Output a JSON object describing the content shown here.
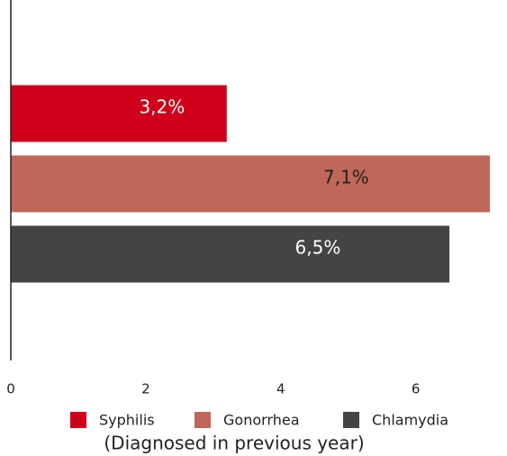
{
  "chart_data": {
    "type": "bar",
    "orientation": "horizontal",
    "categories": [
      null
    ],
    "series": [
      {
        "name": "Syphilis",
        "color": "#d0021b",
        "label_color": "#ffffff",
        "values": [
          3.2
        ],
        "value_labels": [
          "3,2%"
        ]
      },
      {
        "name": "Gonorrhea",
        "color": "#c0675b",
        "label_color": "#222222",
        "values": [
          7.1
        ],
        "value_labels": [
          "7,1%"
        ]
      },
      {
        "name": "Chlamydia",
        "color": "#444444",
        "label_color": "#ffffff",
        "values": [
          6.5
        ],
        "value_labels": [
          "6,5%"
        ]
      }
    ],
    "xlabel": "(Diagnosed in previous year)",
    "xlim": [
      0,
      7.3
    ],
    "xticks": [
      0,
      2,
      4,
      6
    ],
    "grid": false,
    "legend": "bottom"
  }
}
